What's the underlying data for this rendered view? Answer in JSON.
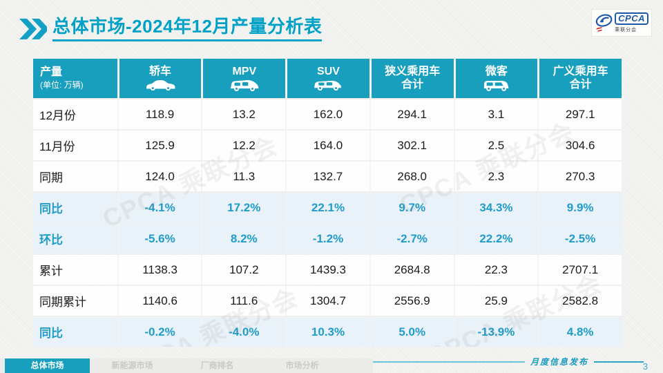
{
  "header": {
    "title_market": "总体市场",
    "title_rest": "-2024年12月产量分析表"
  },
  "logo": {
    "name": "CPCA",
    "subname": "乘联分会"
  },
  "watermark": "CPCA 乘联分会",
  "table": {
    "unit_note": "(单位: 万辆)",
    "columns": [
      {
        "line1": "产量",
        "sub": "(单位: 万辆)"
      },
      {
        "line1": "轿车",
        "icon": "sedan-icon"
      },
      {
        "line1": "MPV",
        "icon": "mpv-icon"
      },
      {
        "line1": "SUV",
        "icon": "suv-icon"
      },
      {
        "line1": "狭义乘用车",
        "line2": "合计"
      },
      {
        "line1": "微客",
        "icon": "microvan-icon"
      },
      {
        "line1": "广义乘用车",
        "line2": "合计"
      }
    ],
    "rows": [
      {
        "label": "12月份",
        "style": "normal",
        "values": [
          "118.9",
          "13.2",
          "162.0",
          "294.1",
          "3.1",
          "297.1"
        ]
      },
      {
        "label": "11月份",
        "style": "normal",
        "values": [
          "125.9",
          "12.2",
          "164.0",
          "302.1",
          "2.5",
          "304.6"
        ]
      },
      {
        "label": "同期",
        "style": "normal",
        "values": [
          "124.0",
          "11.3",
          "132.7",
          "268.0",
          "2.3",
          "270.3"
        ]
      },
      {
        "label": "同比",
        "style": "highlight",
        "values": [
          "-4.1%",
          "17.2%",
          "22.1%",
          "9.7%",
          "34.3%",
          "9.9%"
        ]
      },
      {
        "label": "环比",
        "style": "highlight",
        "values": [
          "-5.6%",
          "8.2%",
          "-1.2%",
          "-2.7%",
          "22.2%",
          "-2.5%"
        ]
      },
      {
        "label": "累计",
        "style": "normal",
        "values": [
          "1138.3",
          "107.2",
          "1439.3",
          "2684.8",
          "22.3",
          "2707.1"
        ]
      },
      {
        "label": "同期累计",
        "style": "normal",
        "values": [
          "1140.6",
          "111.6",
          "1304.7",
          "2556.9",
          "25.9",
          "2582.8"
        ]
      },
      {
        "label": "同比",
        "style": "highlight",
        "values": [
          "-0.2%",
          "-4.0%",
          "10.3%",
          "5.0%",
          "-13.9%",
          "4.8%"
        ]
      }
    ]
  },
  "footer": {
    "tabs": [
      {
        "id": "overall-market",
        "label": "总体市场",
        "active": true
      },
      {
        "id": "nev-market",
        "label": "新能源市场",
        "active": false
      },
      {
        "id": "oem-ranking",
        "label": "厂商排名",
        "active": false
      },
      {
        "id": "market-analysis",
        "label": "市场分析",
        "active": false
      }
    ],
    "release_label": "月度信息发布",
    "page_number": "3"
  },
  "colors": {
    "accent_teal": "#189fbd",
    "title_teal": "#00a1c6",
    "percent_text": "#1f9cc9",
    "highlight_row_bg": "#e9f2f8",
    "logo_blue": "#1e56a8",
    "logo_red": "#d8262c"
  }
}
